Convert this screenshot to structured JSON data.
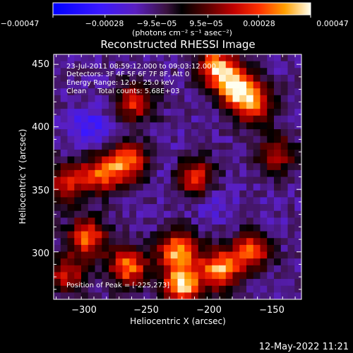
{
  "chart_data": {
    "type": "heatmap",
    "title": "Reconstructed RHESSI Image",
    "xlabel": "Heliocentric X (arcsec)",
    "ylabel": "Heliocentric Y (arcsec)",
    "x_ticks": [
      -300,
      -250,
      -200,
      -150
    ],
    "y_ticks": [
      300,
      350,
      400,
      450
    ],
    "x_tick_labels": [
      "−300",
      "−250",
      "−200",
      "−150"
    ],
    "y_tick_labels": [
      "300",
      "350",
      "400",
      "450"
    ],
    "xlim": [
      -327,
      -130
    ],
    "ylim": [
      262,
      458
    ],
    "colorbar": {
      "ticks": [
        -0.00047,
        -0.00028,
        -9.5e-05,
        9.5e-05,
        0.00028,
        0.00047
      ],
      "tick_labels": [
        "−0.00047",
        "−0.00028",
        "−9.5e−05",
        "9.5e−05",
        "0.00028",
        "0.00047"
      ],
      "unit_label": "(photons cm⁻² s⁻¹ asec⁻²)",
      "range": [
        -0.00047,
        0.00047
      ]
    },
    "annotations": [
      "23-Jul-2011 08:59:12.000 to 09:03:12.000",
      "Detectors: 3F 4F 5F 6F 7F 8F, Att 0",
      "Energy Range: 12.0 - 25.0 keV",
      "Clean     Total counts: 5.68E+03"
    ],
    "peak_label": "Position of Peak = [-225,273]",
    "hot_spots": [
      {
        "x": -182,
        "y": 432,
        "value": 0.00046
      },
      {
        "x": -198,
        "y": 448,
        "value": 0.0004
      },
      {
        "x": -168,
        "y": 418,
        "value": 0.00034
      },
      {
        "x": -228,
        "y": 300,
        "value": 0.00045
      },
      {
        "x": -225,
        "y": 273,
        "value": 0.00047
      },
      {
        "x": -195,
        "y": 286,
        "value": 0.00042
      },
      {
        "x": -170,
        "y": 300,
        "value": 0.00033
      },
      {
        "x": -268,
        "y": 288,
        "value": 0.00039
      },
      {
        "x": -300,
        "y": 312,
        "value": 0.00036
      },
      {
        "x": -290,
        "y": 362,
        "value": 0.00033
      },
      {
        "x": -268,
        "y": 372,
        "value": 0.00038
      },
      {
        "x": -262,
        "y": 420,
        "value": 0.00028
      },
      {
        "x": -215,
        "y": 360,
        "value": 0.00029
      },
      {
        "x": -318,
        "y": 355,
        "value": 0.00025
      },
      {
        "x": -150,
        "y": 378,
        "value": 0.00022
      },
      {
        "x": -316,
        "y": 282,
        "value": 0.00023
      }
    ],
    "cold_spots": [
      {
        "x": -298,
        "y": 400,
        "value": -0.0003
      },
      {
        "x": -236,
        "y": 370,
        "value": -0.00018
      },
      {
        "x": -198,
        "y": 338,
        "value": -0.00022
      },
      {
        "x": -270,
        "y": 340,
        "value": -0.00014
      },
      {
        "x": -160,
        "y": 330,
        "value": -0.00015
      },
      {
        "x": -222,
        "y": 402,
        "value": -0.00013
      }
    ]
  },
  "footer": {
    "timestamp": "12-May-2022 11:21"
  }
}
